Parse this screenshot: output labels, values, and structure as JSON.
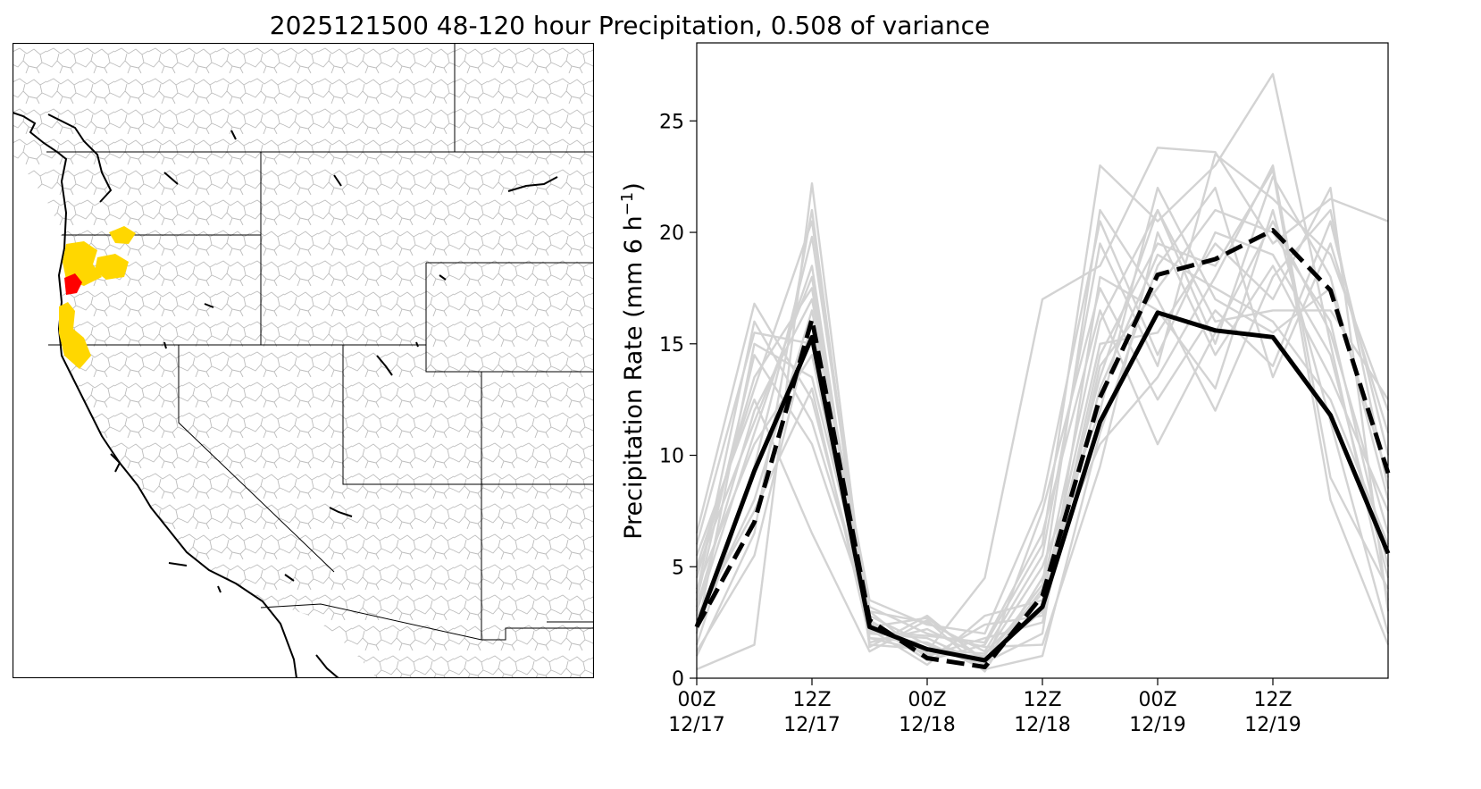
{
  "figure": {
    "title": "2025121500 48-120 hour Precipitation, 0.508 of variance"
  },
  "map": {
    "region": "Western United States river basins",
    "highlighted_basins": [
      {
        "category": "yellow",
        "color": "#ffd700"
      },
      {
        "category": "red",
        "color": "#ff0000"
      }
    ],
    "basin_outline_color": "#bdbdbd",
    "coastline_color": "#000000"
  },
  "chart_data": {
    "type": "line",
    "title": "",
    "xlabel": "",
    "ylabel": "Precipitation Rate (mm 6 h",
    "ylabel_superscript": "−1",
    "ylabel_close": ")",
    "x_ticks": [
      "2025-12-17T00Z",
      "2025-12-17T06Z",
      "2025-12-17T12Z",
      "2025-12-17T18Z",
      "2025-12-18T00Z",
      "2025-12-18T06Z",
      "2025-12-18T12Z",
      "2025-12-18T18Z",
      "2025-12-19T00Z",
      "2025-12-19T06Z",
      "2025-12-19T12Z",
      "2025-12-19T18Z",
      "2025-12-20T00Z"
    ],
    "x_tick_labels": [
      {
        "line1": "00Z",
        "line2": "12/17"
      },
      {
        "line1": "12Z",
        "line2": "12/17"
      },
      {
        "line1": "00Z",
        "line2": "12/18"
      },
      {
        "line1": "12Z",
        "line2": "12/18"
      },
      {
        "line1": "00Z",
        "line2": "12/19"
      },
      {
        "line1": "12Z",
        "line2": "12/19"
      }
    ],
    "y_ticks": [
      0,
      5,
      10,
      15,
      20,
      25
    ],
    "ylim": [
      0,
      28.5
    ],
    "grid": false,
    "series": [
      {
        "style": "solid",
        "color": "#000000",
        "values": [
          2.3,
          9.3,
          15.3,
          2.3,
          1.3,
          0.8,
          3.2,
          11.5,
          16.4,
          15.6,
          15.3,
          11.8,
          5.6
        ]
      },
      {
        "style": "dashed",
        "color": "#000000",
        "values": [
          2.3,
          7.0,
          16.1,
          2.6,
          0.9,
          0.5,
          3.7,
          12.6,
          18.1,
          18.8,
          20.1,
          17.4,
          9.2
        ]
      }
    ],
    "ensemble": {
      "color": "#d3d3d3",
      "members": [
        [
          0.4,
          1.5,
          22.2,
          1.8,
          1.2,
          4.5,
          17.0,
          18.5,
          23.8,
          23.6,
          19.5,
          21.5,
          20.5
        ],
        [
          6.5,
          16.8,
          12.5,
          2.5,
          0.8,
          1.5,
          6.0,
          23.0,
          20.5,
          23.0,
          27.1,
          15.0,
          3.5
        ],
        [
          2.0,
          15.0,
          13.5,
          3.0,
          2.5,
          1.2,
          5.5,
          19.5,
          14.0,
          23.5,
          21.5,
          19.0,
          12.0
        ],
        [
          4.5,
          13.5,
          17.5,
          2.0,
          1.8,
          0.6,
          4.0,
          16.0,
          21.0,
          15.0,
          22.5,
          18.0,
          8.0
        ],
        [
          3.0,
          11.0,
          18.5,
          1.6,
          2.2,
          0.9,
          3.0,
          13.0,
          19.0,
          17.5,
          16.0,
          12.5,
          6.0
        ],
        [
          1.5,
          9.5,
          19.8,
          2.4,
          1.0,
          1.8,
          2.5,
          14.0,
          17.5,
          21.0,
          20.0,
          16.0,
          5.0
        ],
        [
          5.5,
          12.5,
          6.5,
          1.2,
          2.6,
          0.3,
          4.5,
          10.5,
          13.5,
          18.0,
          23.0,
          9.0,
          4.0
        ],
        [
          3.5,
          14.5,
          10.5,
          2.8,
          1.5,
          0.5,
          7.5,
          17.5,
          12.5,
          16.5,
          14.0,
          20.5,
          10.0
        ],
        [
          2.5,
          8.0,
          16.5,
          3.2,
          2.0,
          1.4,
          1.5,
          9.5,
          20.0,
          14.5,
          18.5,
          13.5,
          7.5
        ],
        [
          4.0,
          10.5,
          14.5,
          2.2,
          0.6,
          2.8,
          3.5,
          15.0,
          15.5,
          19.5,
          17.0,
          22.0,
          3.0
        ],
        [
          1.0,
          6.5,
          21.0,
          1.4,
          2.8,
          0.7,
          2.0,
          18.0,
          16.5,
          13.0,
          21.0,
          11.5,
          2.0
        ],
        [
          6.0,
          15.5,
          15.0,
          2.6,
          1.1,
          1.0,
          5.0,
          12.0,
          22.0,
          17.0,
          15.5,
          17.5,
          9.0
        ],
        [
          3.2,
          12.0,
          17.0,
          3.5,
          2.4,
          2.0,
          8.0,
          20.5,
          14.5,
          20.0,
          19.0,
          14.5,
          4.5
        ],
        [
          2.8,
          7.5,
          13.0,
          1.8,
          1.6,
          0.4,
          1.0,
          11.0,
          18.5,
          22.0,
          13.5,
          19.5,
          11.0
        ],
        [
          5.0,
          13.0,
          20.5,
          2.1,
          1.9,
          1.6,
          6.5,
          16.5,
          10.5,
          15.5,
          20.5,
          15.5,
          6.5
        ],
        [
          3.8,
          16.0,
          11.5,
          3.0,
          0.9,
          2.4,
          2.8,
          14.5,
          19.5,
          18.5,
          22.8,
          8.0,
          1.5
        ],
        [
          1.2,
          5.5,
          16.0,
          2.3,
          2.7,
          0.8,
          4.2,
          21.0,
          17.0,
          12.0,
          18.0,
          21.0,
          8.5
        ],
        [
          4.8,
          11.5,
          18.0,
          1.5,
          1.3,
          1.1,
          3.8,
          13.5,
          21.0,
          16.0,
          16.5,
          16.5,
          12.5
        ]
      ]
    }
  }
}
